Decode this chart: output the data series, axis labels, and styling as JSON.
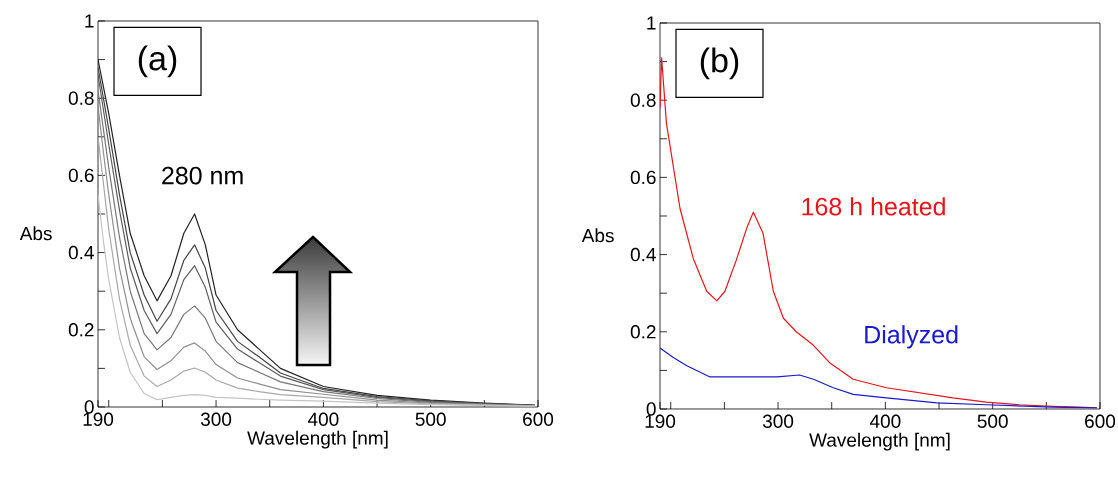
{
  "chart_data": [
    {
      "type": "line",
      "title": "(a)",
      "xlabel": "Wavelength [nm]",
      "ylabel": "Abs",
      "marker": "none",
      "xlim": [
        190,
        600
      ],
      "ylim": [
        0,
        1
      ],
      "xticks": [
        190,
        {
          "value": 200,
          "label": null
        },
        {
          "value": 250,
          "label": null
        },
        300,
        {
          "value": 350,
          "label": null
        },
        400,
        {
          "value": 450,
          "label": null
        },
        500,
        {
          "value": 550,
          "label": null
        },
        600
      ],
      "yticks": [
        0,
        {
          "value": 0.1,
          "label": null
        },
        0.2,
        {
          "value": 0.3,
          "label": null
        },
        0.4,
        {
          "value": 0.5,
          "label": null
        },
        0.6,
        {
          "value": 0.7,
          "label": null
        },
        0.8,
        {
          "value": 0.9,
          "label": null
        },
        1
      ],
      "x": [
        190,
        195,
        200,
        210,
        220,
        233,
        245,
        258,
        270,
        280,
        290,
        300,
        320,
        340,
        360,
        400,
        450,
        500,
        550,
        597
      ],
      "annotations": [
        {
          "text": "280 nm",
          "x": 280,
          "y": 0.5
        }
      ],
      "series": [
        {
          "color": "#222222",
          "values": [
            0.9,
            0.83,
            0.76,
            0.6,
            0.45,
            0.34,
            0.275,
            0.34,
            0.45,
            0.5,
            0.42,
            0.29,
            0.2,
            0.15,
            0.1,
            0.053,
            0.03,
            0.018,
            0.01,
            0.005
          ]
        },
        {
          "color": "#444444",
          "values": [
            0.88,
            0.8,
            0.72,
            0.55,
            0.4,
            0.29,
            0.222,
            0.28,
            0.38,
            0.42,
            0.36,
            0.25,
            0.17,
            0.13,
            0.088,
            0.048,
            0.027,
            0.016,
            0.009,
            0.004
          ]
        },
        {
          "color": "#5c5c5c",
          "values": [
            0.86,
            0.77,
            0.68,
            0.51,
            0.36,
            0.25,
            0.19,
            0.24,
            0.33,
            0.366,
            0.31,
            0.22,
            0.15,
            0.115,
            0.08,
            0.045,
            0.025,
            0.014,
            0.008,
            0.004
          ]
        },
        {
          "color": "#777777",
          "values": [
            0.82,
            0.72,
            0.62,
            0.44,
            0.3,
            0.19,
            0.148,
            0.18,
            0.24,
            0.262,
            0.23,
            0.17,
            0.115,
            0.09,
            0.065,
            0.04,
            0.022,
            0.012,
            0.007,
            0.003
          ]
        },
        {
          "color": "#8f8f8f",
          "values": [
            0.78,
            0.66,
            0.55,
            0.36,
            0.23,
            0.13,
            0.097,
            0.12,
            0.155,
            0.166,
            0.145,
            0.11,
            0.075,
            0.06,
            0.045,
            0.033,
            0.018,
            0.01,
            0.006,
            0.003
          ]
        },
        {
          "color": "#a8a8a8",
          "values": [
            0.7,
            0.58,
            0.46,
            0.28,
            0.16,
            0.08,
            0.053,
            0.07,
            0.093,
            0.101,
            0.09,
            0.07,
            0.049,
            0.04,
            0.032,
            0.025,
            0.014,
            0.008,
            0.005,
            0.002
          ]
        },
        {
          "color": "#c4c4c4",
          "values": [
            0.55,
            0.43,
            0.33,
            0.18,
            0.09,
            0.035,
            0.019,
            0.025,
            0.03,
            0.032,
            0.03,
            0.025,
            0.023,
            0.02,
            0.018,
            0.015,
            0.01,
            0.006,
            0.004,
            0.002
          ]
        }
      ]
    },
    {
      "type": "line",
      "title": "(b)",
      "xlabel": "Wavelength [nm]",
      "ylabel": "Abs",
      "marker": "none",
      "xlim": [
        190,
        600
      ],
      "ylim": [
        0,
        1
      ],
      "xticks": [
        190,
        {
          "value": 200,
          "label": null
        },
        {
          "value": 250,
          "label": null
        },
        300,
        {
          "value": 350,
          "label": null
        },
        400,
        {
          "value": 450,
          "label": null
        },
        500,
        {
          "value": 550,
          "label": null
        },
        600
      ],
      "yticks": [
        0,
        {
          "value": 0.1,
          "label": null
        },
        0.2,
        {
          "value": 0.3,
          "label": null
        },
        0.4,
        {
          "value": 0.5,
          "label": null
        },
        0.6,
        {
          "value": 0.7,
          "label": null
        },
        0.8,
        {
          "value": 0.9,
          "label": null
        },
        1
      ],
      "series": [
        {
          "name": "168 h heated",
          "color": "#e8141c",
          "x": [
            190,
            191.5,
            196,
            208.6,
            221,
            233.5,
            243,
            250.5,
            261,
            271,
            277,
            286,
            295.6,
            305,
            317,
            333,
            348,
            370,
            401,
            432,
            463,
            494,
            525,
            556,
            581,
            597
          ],
          "values": [
            0.78,
            0.91,
            0.74,
            0.52,
            0.39,
            0.305,
            0.28,
            0.305,
            0.385,
            0.47,
            0.51,
            0.455,
            0.305,
            0.235,
            0.2,
            0.165,
            0.12,
            0.077,
            0.055,
            0.042,
            0.029,
            0.018,
            0.011,
            0.007,
            0.005,
            0.003
          ]
        },
        {
          "name": "Dialyzed",
          "color": "#1a1ad0",
          "x": [
            190,
            202,
            215,
            236.6,
            261,
            299,
            320,
            333,
            351.5,
            370,
            401,
            448,
            494,
            556,
            597
          ],
          "values": [
            0.158,
            0.134,
            0.112,
            0.083,
            0.083,
            0.083,
            0.088,
            0.077,
            0.055,
            0.038,
            0.029,
            0.016,
            0.011,
            0.005,
            0.003
          ]
        }
      ]
    }
  ]
}
